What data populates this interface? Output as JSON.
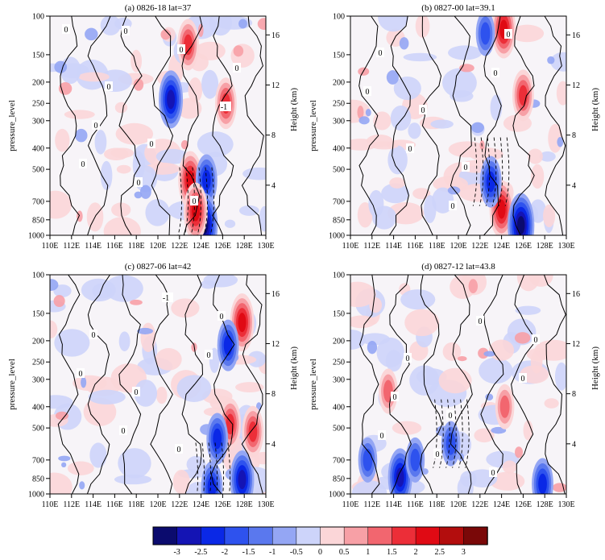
{
  "chart_data": [
    {
      "type": "heatmap",
      "title": "(a) 0826-18 lat=37",
      "ylabel": "pressure_level",
      "ylabel_right": "Height (km)",
      "xlim": [
        110,
        130
      ],
      "ylim": [
        1000,
        100
      ],
      "y_scale": "log",
      "contour_labels": [
        "0",
        "0",
        "0",
        "0",
        "0",
        "0",
        "0",
        "0",
        "-1",
        "0",
        "0"
      ],
      "hotspots": [
        {
          "lon": 123.0,
          "p": 560,
          "value": 2.5
        },
        {
          "lon": 122.8,
          "p": 135,
          "value": 2.0
        },
        {
          "lon": 126.3,
          "p": 250,
          "value": 2.0
        },
        {
          "lon": 121.2,
          "p": 240,
          "value": -2.5
        },
        {
          "lon": 124.5,
          "p": 560,
          "value": -2.0
        },
        {
          "lon": 124.3,
          "p": 900,
          "value": -3.0
        },
        {
          "lon": 123.5,
          "p": 780,
          "value": 2.5
        }
      ]
    },
    {
      "type": "heatmap",
      "title": "(b) 0827-00 lat=39.1",
      "ylabel": "pressure_level",
      "ylabel_right": "Height (km)",
      "xlim": [
        110,
        130
      ],
      "ylim": [
        1000,
        100
      ],
      "y_scale": "log",
      "contour_labels": [
        "0",
        "0",
        "0",
        "0",
        "0",
        "0",
        "0",
        "0"
      ],
      "hotspots": [
        {
          "lon": 124.2,
          "p": 115,
          "value": 2.5
        },
        {
          "lon": 126.0,
          "p": 230,
          "value": 2.0
        },
        {
          "lon": 122.5,
          "p": 120,
          "value": -1.5
        },
        {
          "lon": 124.0,
          "p": 760,
          "value": 2.5
        },
        {
          "lon": 125.8,
          "p": 900,
          "value": -3.0
        },
        {
          "lon": 123.0,
          "p": 570,
          "value": -2.0
        }
      ]
    },
    {
      "type": "heatmap",
      "title": "(c) 0827-06 lat=42",
      "ylabel": "pressure_level",
      "ylabel_right": "Height (km)",
      "xlim": [
        110,
        130
      ],
      "ylim": [
        1000,
        100
      ],
      "y_scale": "log",
      "contour_labels": [
        "0",
        "0",
        "0",
        "0",
        "0",
        "0",
        "-1",
        "0"
      ],
      "hotspots": [
        {
          "lon": 127.8,
          "p": 165,
          "value": 2.5
        },
        {
          "lon": 126.5,
          "p": 210,
          "value": -2.0
        },
        {
          "lon": 126.7,
          "p": 480,
          "value": 2.0
        },
        {
          "lon": 128.8,
          "p": 520,
          "value": 2.0
        },
        {
          "lon": 125.5,
          "p": 560,
          "value": -2.0
        },
        {
          "lon": 127.8,
          "p": 860,
          "value": -2.5
        },
        {
          "lon": 125.0,
          "p": 930,
          "value": -2.0
        }
      ]
    },
    {
      "type": "heatmap",
      "title": "(d) 0827-12 lat=43.8",
      "ylabel": "pressure_level",
      "ylabel_right": "Height (km)",
      "xlim": [
        110,
        130
      ],
      "ylim": [
        1000,
        100
      ],
      "y_scale": "log",
      "contour_labels": [
        "0",
        "0",
        "0",
        "0",
        "0",
        "0",
        "0",
        "0",
        "0"
      ],
      "hotspots": [
        {
          "lon": 114.6,
          "p": 840,
          "value": -2.5
        },
        {
          "lon": 111.6,
          "p": 700,
          "value": -1.5
        },
        {
          "lon": 116.0,
          "p": 700,
          "value": -1.5
        },
        {
          "lon": 127.8,
          "p": 900,
          "value": -2.0
        },
        {
          "lon": 113.5,
          "p": 340,
          "value": 1.5
        },
        {
          "lon": 124.3,
          "p": 400,
          "value": 1.5
        },
        {
          "lon": 119.3,
          "p": 590,
          "value": -1.5
        }
      ]
    }
  ],
  "axes": {
    "x_ticks": [
      "110E",
      "112E",
      "114E",
      "116E",
      "118E",
      "120E",
      "122E",
      "124E",
      "126E",
      "128E",
      "130E"
    ],
    "y_ticks": [
      "100",
      "150",
      "200",
      "250",
      "300",
      "400",
      "500",
      "700",
      "850",
      "1000"
    ],
    "height_ticks": [
      "16",
      "12",
      "8",
      "4"
    ]
  },
  "colorbar": {
    "tick_labels": [
      "-3",
      "-2.5",
      "-2",
      "-1.5",
      "-1",
      "-0.5",
      "0",
      "0.5",
      "1",
      "1.5",
      "2",
      "2.5",
      "3"
    ],
    "colors": [
      "#0b0b6e",
      "#1414b4",
      "#0a28e6",
      "#2e52ee",
      "#5a78ee",
      "#94a6f4",
      "#cdd4fa",
      "#fbd6d8",
      "#f7a0a6",
      "#f2666f",
      "#ec2e38",
      "#e00a14",
      "#b30d0d",
      "#7a0808"
    ]
  }
}
